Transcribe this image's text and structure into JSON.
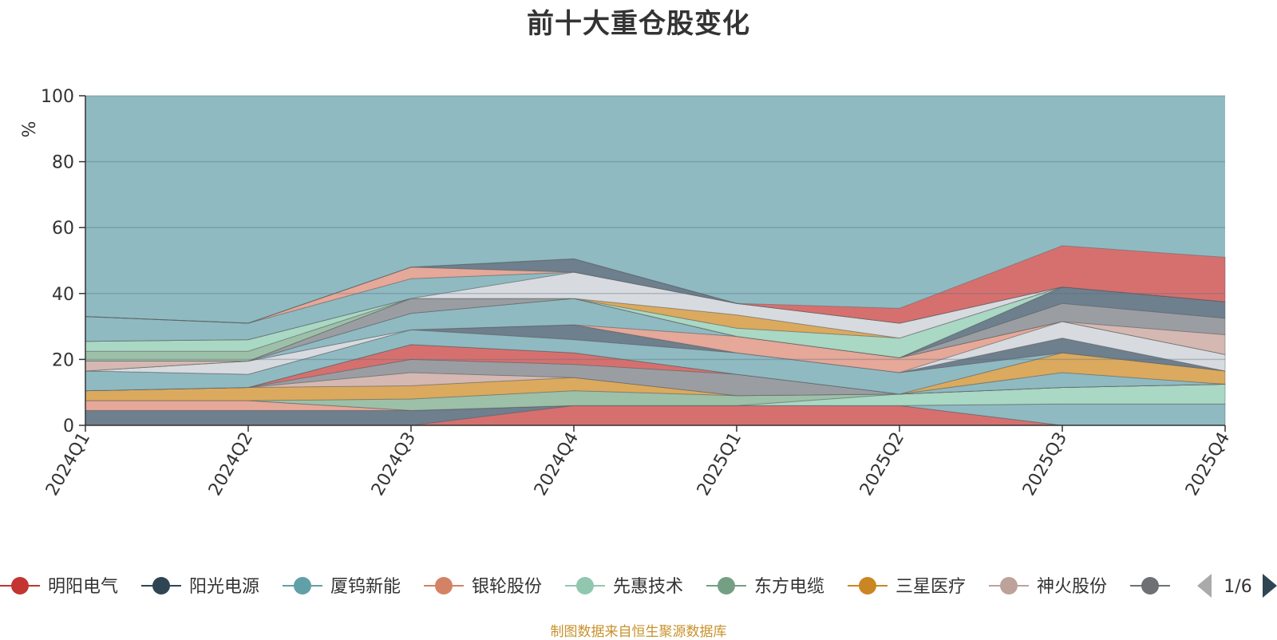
{
  "chart_data": {
    "type": "area",
    "title": "前十大重仓股变化",
    "ylabel": "%",
    "ylim": [
      0,
      100
    ],
    "y_ticks": [
      "0",
      "20",
      "40",
      "60",
      "80",
      "100"
    ],
    "categories": [
      "2024Q1",
      "2024Q2",
      "2024Q3",
      "2024Q4",
      "2025Q1",
      "2025Q2",
      "2025Q3",
      "2025Q4"
    ],
    "grid": true,
    "series": [
      {
        "name": "明阳电气",
        "color": "#d6706f",
        "values": [
          0,
          0,
          0,
          6,
          6,
          6,
          0,
          0
        ]
      },
      {
        "name": "阳光电源",
        "color": "#6e7f8e",
        "values": [
          4.5,
          4.5,
          4.5,
          0,
          0,
          0,
          0,
          0
        ]
      },
      {
        "name": "厦钨新能",
        "color": "#8fbac2",
        "values": [
          0,
          0,
          0,
          0,
          0,
          0,
          6.5,
          6.5
        ]
      },
      {
        "name": "银轮股份",
        "color": "#e5a899",
        "values": [
          3,
          3,
          0,
          0,
          0,
          0,
          0,
          0
        ]
      },
      {
        "name": "先惠技术",
        "color": "#a9d8c4",
        "values": [
          0,
          0,
          0,
          0,
          0,
          3.5,
          5,
          6
        ]
      },
      {
        "name": "东方电缆",
        "color": "#9dc0a8",
        "values": [
          0,
          0,
          3.5,
          4.5,
          3,
          0,
          0,
          0
        ]
      },
      {
        "name": "三星医疗",
        "color": "#dbaa5e",
        "values": [
          3,
          4,
          4,
          4,
          0,
          0,
          0,
          0
        ]
      },
      {
        "name": "神火股份",
        "color": "#d5b8b2",
        "values": [
          0,
          0,
          4,
          0,
          0,
          0,
          0,
          0
        ]
      },
      {
        "name": "",
        "color": "#9a9ea3",
        "values": [
          0,
          0,
          4,
          4,
          6.5,
          0,
          0,
          0
        ]
      },
      {
        "name": "",
        "color": "#d6706f",
        "values": [
          0,
          0,
          4.5,
          3.5,
          0,
          0,
          0,
          0
        ]
      },
      {
        "name": "",
        "color": "#8fbac2",
        "values": [
          0,
          0,
          0,
          0,
          0,
          0,
          4.5,
          0
        ]
      },
      {
        "name": "",
        "color": "#dbaa5e",
        "values": [
          0,
          0,
          0,
          0,
          0,
          0,
          6,
          4
        ]
      },
      {
        "name": "",
        "color": "#8fbac2",
        "values": [
          6,
          4,
          4.5,
          4,
          6.5,
          6.5,
          0,
          0
        ]
      },
      {
        "name": "",
        "color": "#6e7f8e",
        "values": [
          0,
          0,
          0,
          4.5,
          0,
          0,
          4.5,
          0
        ]
      },
      {
        "name": "",
        "color": "#d7dbe0",
        "values": [
          0,
          4,
          0,
          0,
          0,
          0,
          5,
          5
        ]
      },
      {
        "name": "",
        "color": "#e5a899",
        "values": [
          0,
          0,
          0,
          0,
          5,
          4.5,
          0,
          0
        ]
      },
      {
        "name": "",
        "color": "#8fbac2",
        "values": [
          0,
          0,
          5,
          8,
          0,
          0,
          0,
          0
        ]
      },
      {
        "name": "",
        "color": "#d5b8b2",
        "values": [
          3,
          0,
          0,
          0,
          0,
          0,
          0,
          6
        ]
      },
      {
        "name": "",
        "color": "#9a9ea3",
        "values": [
          0,
          0,
          4.5,
          0,
          0,
          0,
          5.5,
          5
        ]
      },
      {
        "name": "",
        "color": "#6e7f8e",
        "values": [
          0,
          0,
          0,
          0,
          0,
          0,
          5,
          5
        ]
      },
      {
        "name": "",
        "color": "#e5a899",
        "values": [
          0,
          0,
          0,
          0,
          0,
          0,
          0,
          0
        ]
      },
      {
        "name": "",
        "color": "#9dc0a8",
        "values": [
          3,
          3,
          0,
          0,
          0,
          0,
          0,
          0
        ]
      },
      {
        "name": "",
        "color": "#a9d8c4",
        "values": [
          3,
          3.5,
          0,
          0,
          2.5,
          6,
          0,
          0
        ]
      },
      {
        "name": "",
        "color": "#dbaa5e",
        "values": [
          0,
          0,
          0,
          0,
          4,
          0,
          0,
          0
        ]
      },
      {
        "name": "",
        "color": "#d7dbe0",
        "values": [
          0,
          0,
          0,
          8,
          3.5,
          4.5,
          0,
          0
        ]
      },
      {
        "name": "",
        "color": "#8fbac2",
        "values": [
          7.5,
          5,
          6,
          0,
          0,
          0,
          0,
          0
        ]
      },
      {
        "name": "",
        "color": "#e5a899",
        "values": [
          0,
          0,
          3.5,
          0,
          0,
          0,
          0,
          0
        ]
      },
      {
        "name": "",
        "color": "#6e7f8e",
        "values": [
          0,
          0,
          0,
          4,
          0,
          0,
          0,
          0
        ]
      },
      {
        "name": "",
        "color": "#d6706f",
        "values": [
          0,
          0,
          0,
          0,
          0,
          4.5,
          12.5,
          13.5
        ]
      }
    ],
    "remainder_color": "#8fbac2"
  },
  "legend": {
    "items": [
      {
        "name": "明阳电气",
        "color": "#c23531"
      },
      {
        "name": "阳光电源",
        "color": "#2f4554"
      },
      {
        "name": "厦钨新能",
        "color": "#61a0a8"
      },
      {
        "name": "银轮股份",
        "color": "#d48265"
      },
      {
        "name": "先惠技术",
        "color": "#91c7ae"
      },
      {
        "name": "东方电缆",
        "color": "#749f83"
      },
      {
        "name": "三星医疗",
        "color": "#ca8622"
      },
      {
        "name": "神火股份",
        "color": "#bda29a"
      },
      {
        "name": "",
        "color": "#6e7074"
      }
    ],
    "page": "1/6"
  },
  "source": "制图数据来自恒生聚源数据库"
}
